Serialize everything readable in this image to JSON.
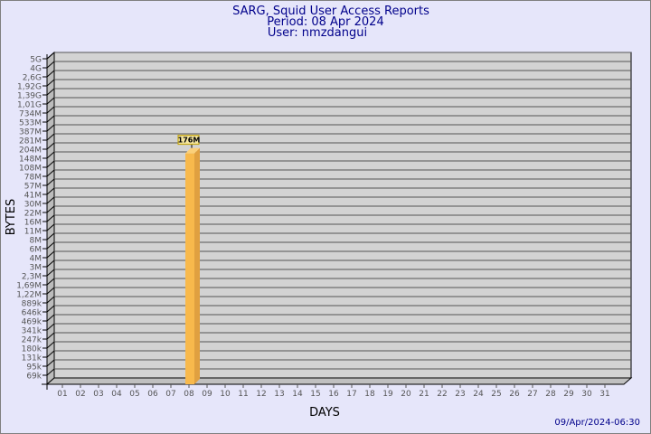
{
  "chart_data": {
    "type": "bar",
    "title": [
      "SARG, Squid User Access Reports",
      "Period: 08 Apr 2024",
      "User: nmzdangui"
    ],
    "xlabel": "DAYS",
    "ylabel": "BYTES",
    "y_scale": "log",
    "y_tick_labels": [
      "5G",
      "4G",
      "2,6G",
      "1,92G",
      "1,39G",
      "1,01G",
      "734M",
      "533M",
      "387M",
      "281M",
      "204M",
      "148M",
      "108M",
      "78M",
      "57M",
      "41M",
      "30M",
      "22M",
      "16M",
      "11M",
      "8M",
      "6M",
      "4M",
      "3M",
      "2,3M",
      "1,69M",
      "1,22M",
      "889k",
      "646k",
      "469k",
      "341k",
      "247k",
      "180k",
      "131k",
      "95k",
      "69k"
    ],
    "categories": [
      "01",
      "02",
      "03",
      "04",
      "05",
      "06",
      "07",
      "08",
      "09",
      "10",
      "11",
      "12",
      "13",
      "14",
      "15",
      "16",
      "17",
      "18",
      "19",
      "20",
      "21",
      "22",
      "23",
      "24",
      "25",
      "26",
      "27",
      "28",
      "29",
      "30",
      "31"
    ],
    "values": [
      {
        "day": "08",
        "value": "176M",
        "level_tick": "176M"
      }
    ],
    "grid": true,
    "colors": {
      "background": "#e6e6fa",
      "plot": "#d3d3d3",
      "bar": "#f8b94c",
      "title": "#00008b"
    }
  },
  "footer": {
    "timestamp": "09/Apr/2024-06:30"
  }
}
